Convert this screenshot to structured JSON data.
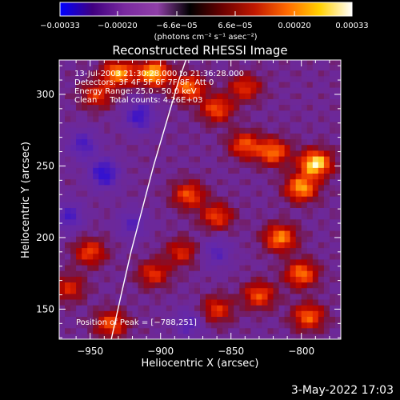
{
  "chart_data": {
    "type": "heatmap",
    "title": "Reconstructed RHESSI Image",
    "xlabel": "Heliocentric X (arcsec)",
    "ylabel": "Heliocentric Y (arcsec)",
    "xlim": [
      -972,
      -772
    ],
    "ylim": [
      129,
      324
    ],
    "x_ticks": [
      -950,
      -900,
      -850,
      -800
    ],
    "y_ticks": [
      150,
      200,
      250,
      300
    ],
    "x_tick_labels": [
      "−950",
      "−900",
      "−850",
      "−800"
    ],
    "y_tick_labels": [
      "150",
      "200",
      "250",
      "300"
    ],
    "colorbar": {
      "range": [
        -0.00033,
        0.00033
      ],
      "ticks": [
        -0.00033,
        -0.0002,
        -6.6e-05,
        6.6e-05,
        0.0002,
        0.00033
      ],
      "tick_labels": [
        "−0.00033",
        "−0.00020",
        "−6.6e−05",
        "6.6e−05",
        "0.00020",
        "0.00033"
      ],
      "units_label": "(photons cm⁻² s⁻¹ asec⁻²)",
      "colors": [
        "#0000ff",
        "#400080",
        "#7a2aa0",
        "#9040a8",
        "#000000",
        "#6a0000",
        "#c01800",
        "#ff6a00",
        "#ffd000",
        "#ffffff"
      ]
    },
    "annotations": [
      "13-Jul-2003 21:30:28.000 to 21:36:28.000",
      "Detectors: 3F 4F 5F 6F 7F 8F, Att 0",
      "Energy Range: 25.0 - 50.0 keV",
      "Clean     Total counts: 4.26E+03"
    ],
    "peak_label": "Position of Peak = [−788,251]",
    "peak_position": [
      -788,
      251
    ],
    "limb_curve": [
      [
        -935,
        129
      ],
      [
        -928,
        160
      ],
      [
        -921,
        190
      ],
      [
        -913,
        220
      ],
      [
        -905,
        250
      ],
      [
        -896,
        280
      ],
      [
        -887,
        310
      ],
      [
        -882,
        324
      ]
    ],
    "hot_spots": [
      {
        "x": -790,
        "y": 252,
        "intensity": 1.0
      },
      {
        "x": -800,
        "y": 235,
        "intensity": 0.8
      },
      {
        "x": -820,
        "y": 260,
        "intensity": 0.7
      },
      {
        "x": -840,
        "y": 265,
        "intensity": 0.6
      },
      {
        "x": -930,
        "y": 315,
        "intensity": 0.8
      },
      {
        "x": -905,
        "y": 315,
        "intensity": 0.9
      },
      {
        "x": -880,
        "y": 305,
        "intensity": 0.7
      },
      {
        "x": -860,
        "y": 290,
        "intensity": 0.6
      },
      {
        "x": -945,
        "y": 300,
        "intensity": 0.5
      },
      {
        "x": -880,
        "y": 230,
        "intensity": 0.6
      },
      {
        "x": -860,
        "y": 215,
        "intensity": 0.55
      },
      {
        "x": -815,
        "y": 200,
        "intensity": 0.75
      },
      {
        "x": -800,
        "y": 175,
        "intensity": 0.7
      },
      {
        "x": -830,
        "y": 160,
        "intensity": 0.6
      },
      {
        "x": -795,
        "y": 145,
        "intensity": 0.65
      },
      {
        "x": -860,
        "y": 150,
        "intensity": 0.5
      },
      {
        "x": -950,
        "y": 190,
        "intensity": 0.55
      },
      {
        "x": -965,
        "y": 165,
        "intensity": 0.45
      },
      {
        "x": -935,
        "y": 140,
        "intensity": 0.6
      },
      {
        "x": -905,
        "y": 175,
        "intensity": 0.5
      },
      {
        "x": -885,
        "y": 190,
        "intensity": 0.45
      },
      {
        "x": -840,
        "y": 305,
        "intensity": 0.5
      }
    ],
    "cold_spots": [
      {
        "x": -940,
        "y": 245,
        "intensity": 0.7
      },
      {
        "x": -915,
        "y": 285,
        "intensity": 0.6
      },
      {
        "x": -955,
        "y": 265,
        "intensity": 0.5
      },
      {
        "x": -965,
        "y": 215,
        "intensity": 0.5
      },
      {
        "x": -920,
        "y": 210,
        "intensity": 0.4
      },
      {
        "x": -860,
        "y": 190,
        "intensity": 0.4
      },
      {
        "x": -880,
        "y": 140,
        "intensity": 0.4
      }
    ]
  },
  "footer": {
    "date": "3-May-2022 17:03"
  }
}
